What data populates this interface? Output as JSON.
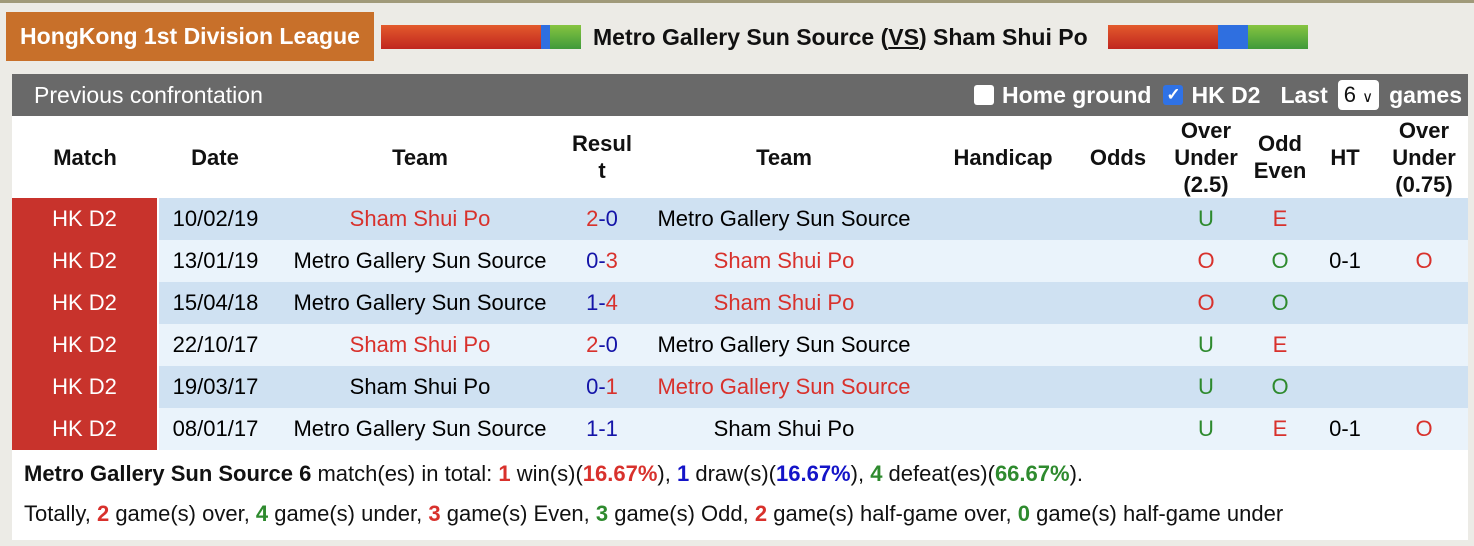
{
  "league": "HongKong 1st Division League",
  "home_team": "Metro Gallery Sun Source",
  "vs": "VS",
  "away_team": "Sham Shui Po",
  "colors": {
    "league_bg": "#c8702a",
    "match_cell": "#c8332c",
    "win": "#d8312c",
    "blue": "#1414a8",
    "green": "#2e8a2e"
  },
  "section_title": "Previous confrontation",
  "filters": {
    "home_ground_label": "Home ground",
    "home_ground_checked": false,
    "league_label": "HK D2",
    "league_checked": true,
    "last_label": "Last",
    "last_value": "6",
    "games_label": "games"
  },
  "columns": [
    "Match",
    "Date",
    "Team",
    "Resul t",
    "Team",
    "Handicap",
    "Odds",
    "Over Under (2.5)",
    "Odd Even",
    "HT",
    "Over Under (0.75)"
  ],
  "rows": [
    {
      "match": "HK D2",
      "date": "10/02/19",
      "home": "Sham Shui Po",
      "hs": "2",
      "as": "0",
      "away": "Metro Gallery Sun Source",
      "winner": "home",
      "handicap": "",
      "odds": "",
      "ou": "U",
      "oe": "E",
      "ht": "",
      "ou075": ""
    },
    {
      "match": "HK D2",
      "date": "13/01/19",
      "home": "Metro Gallery Sun Source",
      "hs": "0",
      "as": "3",
      "away": "Sham Shui Po",
      "winner": "away",
      "handicap": "",
      "odds": "",
      "ou": "O",
      "oe": "O",
      "ht": "0-1",
      "ou075": "O"
    },
    {
      "match": "HK D2",
      "date": "15/04/18",
      "home": "Metro Gallery Sun Source",
      "hs": "1",
      "as": "4",
      "away": "Sham Shui Po",
      "winner": "away",
      "handicap": "",
      "odds": "",
      "ou": "O",
      "oe": "O",
      "ht": "",
      "ou075": ""
    },
    {
      "match": "HK D2",
      "date": "22/10/17",
      "home": "Sham Shui Po",
      "hs": "2",
      "as": "0",
      "away": "Metro Gallery Sun Source",
      "winner": "home",
      "handicap": "",
      "odds": "",
      "ou": "U",
      "oe": "E",
      "ht": "",
      "ou075": ""
    },
    {
      "match": "HK D2",
      "date": "19/03/17",
      "home": "Sham Shui Po",
      "hs": "0",
      "as": "1",
      "away": "Metro Gallery Sun Source",
      "winner": "away",
      "handicap": "",
      "odds": "",
      "ou": "U",
      "oe": "O",
      "ht": "",
      "ou075": ""
    },
    {
      "match": "HK D2",
      "date": "08/01/17",
      "home": "Metro Gallery Sun Source",
      "hs": "1",
      "as": "1",
      "away": "Sham Shui Po",
      "winner": "none",
      "handicap": "",
      "odds": "",
      "ou": "U",
      "oe": "E",
      "ht": "0-1",
      "ou075": "O"
    }
  ],
  "summary1": {
    "team": "Metro Gallery Sun Source",
    "total": "6",
    "t1": " match(es) in total: ",
    "wins": "1",
    "t2": " win(s)(",
    "win_pct": "16.67%",
    "t3": "), ",
    "draws": "1",
    "t4": " draw(s)(",
    "draw_pct": "16.67%",
    "t5": "), ",
    "defeats": "4",
    "t6": " defeat(es)(",
    "defeat_pct": "66.67%",
    "t7": ")."
  },
  "summary2": {
    "t0": "Totally, ",
    "over": "2",
    "t1": " game(s) over, ",
    "under": "4",
    "t2": " game(s) under, ",
    "even": "3",
    "t3": " game(s) Even, ",
    "odd": "3",
    "t4": " game(s) Odd, ",
    "hover": "2",
    "t5": " game(s) half-game over, ",
    "hunder": "0",
    "t6": " game(s) half-game under"
  }
}
